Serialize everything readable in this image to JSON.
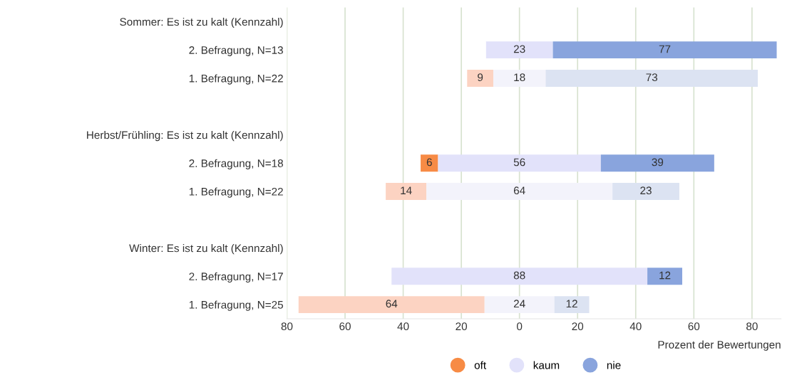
{
  "chart_data": {
    "type": "bar",
    "orientation": "horizontal",
    "categories": [
      "Sommer: Es ist zu kalt (Kennzahl)",
      "2. Befragung, N=13",
      "1. Befragung, N=22",
      null,
      "Herbst/Frühling: Es ist zu kalt (Kennzahl)",
      "2. Befragung, N=18",
      "1. Befragung, N=22",
      null,
      "Winter: Es ist zu kalt (Kennzahl)",
      "2. Befragung, N=17",
      "1. Befragung, N=25"
    ],
    "series": [
      {
        "name": "oft",
        "color": "#f78b45",
        "values": [
          null,
          null,
          9,
          null,
          null,
          6,
          14,
          null,
          null,
          null,
          64
        ],
        "base": [
          null,
          null,
          -18,
          null,
          null,
          -34,
          -46,
          null,
          null,
          null,
          -76
        ],
        "colors": [
          null,
          null,
          "#fcd3c2",
          null,
          null,
          "#f78b45",
          "#fcd3c2",
          null,
          null,
          null,
          "#fcd3c2"
        ]
      },
      {
        "name": "kaum",
        "color": "#e2e2fa",
        "values": [
          null,
          23,
          18,
          null,
          null,
          56,
          64,
          null,
          null,
          88,
          24
        ],
        "base": [
          null,
          -11.5,
          -9,
          null,
          null,
          -28,
          -32,
          null,
          null,
          -44,
          -12
        ],
        "colors": [
          null,
          "#e2e2fa",
          "#f3f3fb",
          null,
          null,
          "#e2e2fa",
          "#f3f3fb",
          null,
          null,
          "#e2e2fa",
          "#f3f3fb"
        ]
      },
      {
        "name": "nie",
        "color": "#89a4dd",
        "values": [
          null,
          77,
          73,
          null,
          null,
          39,
          23,
          null,
          null,
          12,
          12
        ],
        "base": [
          null,
          11.5,
          9,
          null,
          null,
          28,
          32,
          null,
          null,
          44,
          12
        ],
        "colors": [
          null,
          "#89a4dd",
          "#dce3f2",
          null,
          null,
          "#89a4dd",
          "#dce3f2",
          null,
          null,
          "#89a4dd",
          "#dce3f2"
        ]
      }
    ],
    "data_labels": true,
    "xlim": [
      -80,
      90
    ],
    "xticks": [
      {
        "value": -80,
        "label": "80"
      },
      {
        "value": -60,
        "label": "60"
      },
      {
        "value": -40,
        "label": "40"
      },
      {
        "value": -20,
        "label": "20"
      },
      0,
      20,
      40,
      60,
      80
    ],
    "xlabel": "Prozent der Bewertungen",
    "grid": "x",
    "legend": "bottom",
    "marker": "circle"
  }
}
